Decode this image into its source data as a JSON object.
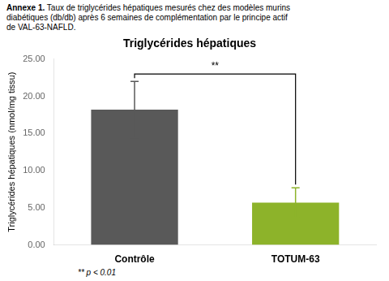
{
  "chart_data": {
    "type": "bar",
    "title": "Triglycérides hépatiques",
    "subtitle_bold": "Annexe 1.",
    "subtitle": [
      " Taux de triglycérides hépatiques mesurés chez des modèles murins",
      "diabétiques (db/db) après 6 semaines de complémentation par le principe actif",
      "de VAL-63-NAFLD."
    ],
    "ylabel": "Triglycérides hépatiques (nmol/mg tissu)",
    "categories": [
      "Contrôle",
      "TOTUM-63"
    ],
    "values": [
      18.2,
      5.7
    ],
    "errors": [
      3.8,
      2.0
    ],
    "colors": [
      "#595959",
      "#8db32a"
    ],
    "ylim": [
      0,
      25
    ],
    "yticks": [
      {
        "value": 0,
        "label": "0.00"
      },
      {
        "value": 5,
        "label": "5.00"
      },
      {
        "value": 10,
        "label": "10.00"
      },
      {
        "value": 15,
        "label": "15.00"
      },
      {
        "value": 20,
        "label": "20.00"
      },
      {
        "value": 25,
        "label": "25.00"
      }
    ],
    "annotations": [
      {
        "text": "**",
        "between": [
          "Contrôle",
          "TOTUM-63"
        ],
        "y": 23.0,
        "text_y": 23.4
      }
    ],
    "footnote": "** p < 0.01",
    "grid": false
  }
}
